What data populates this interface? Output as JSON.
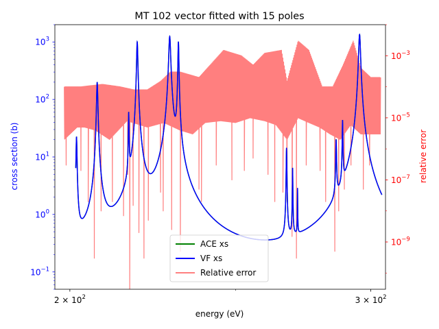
{
  "chart_data": {
    "type": "line",
    "title": "MT 102 vector fitted with 15 poles",
    "xlabel": "energy (eV)",
    "ylabel_left": "cross section (b)",
    "ylabel_right": "relative error",
    "x_scale": "log",
    "y_left_scale": "log",
    "y_right_scale": "log",
    "xlim": [
      196,
      306
    ],
    "ylim_left": [
      0.05,
      2000
    ],
    "ylim_right": [
      3e-11,
      0.01
    ],
    "x_ticks": [
      {
        "value": 200,
        "label": "2 × 10^2",
        "mant": "2 × 10",
        "exp": "2"
      },
      {
        "value": 300,
        "label": "3 × 10^2",
        "mant": "3 × 10",
        "exp": "2"
      }
    ],
    "y_left_ticks": [
      {
        "value": 1000,
        "label": "10^3",
        "exp": "3"
      },
      {
        "value": 100,
        "label": "10^2",
        "exp": "2"
      },
      {
        "value": 10,
        "label": "10^1",
        "exp": "1"
      },
      {
        "value": 1,
        "label": "10^0",
        "exp": "0"
      },
      {
        "value": 0.1,
        "label": "10^-1",
        "exp": "−1"
      }
    ],
    "y_right_ticks": [
      {
        "value": 0.001,
        "label": "10^-3",
        "exp": "−3"
      },
      {
        "value": 1e-05,
        "label": "10^-5",
        "exp": "−5"
      },
      {
        "value": 1e-07,
        "label": "10^-7",
        "exp": "−7"
      },
      {
        "value": 1e-09,
        "label": "10^-9",
        "exp": "−9"
      }
    ],
    "background_level": 0.08,
    "resonances": [
      {
        "E0": 201.8,
        "peak": 22,
        "gamma": 0.0006
      },
      {
        "E0": 207.5,
        "peak": 200,
        "gamma": 0.0008
      },
      {
        "E0": 216.5,
        "peak": 55,
        "gamma": 0.0004
      },
      {
        "E0": 219.0,
        "peak": 1000,
        "gamma": 0.0008
      },
      {
        "E0": 228.8,
        "peak": 1250,
        "gamma": 0.0012
      },
      {
        "E0": 231.5,
        "peak": 1000,
        "gamma": 0.0006
      },
      {
        "E0": 267.8,
        "peak": 14,
        "gamma": 0.0004
      },
      {
        "E0": 270.0,
        "peak": 6,
        "gamma": 0.0003
      },
      {
        "E0": 271.8,
        "peak": 2.4,
        "gamma": 0.0002
      },
      {
        "E0": 286.3,
        "peak": 18,
        "gamma": 0.0005
      },
      {
        "E0": 288.8,
        "peak": 40,
        "gamma": 0.0004
      },
      {
        "E0": 295.5,
        "peak": 1350,
        "gamma": 0.0012
      }
    ],
    "error_envelope": {
      "upper": [
        [
          198.5,
          0.0001
        ],
        [
          203,
          0.0001
        ],
        [
          209,
          0.00012
        ],
        [
          214,
          0.0001
        ],
        [
          218,
          8e-05
        ],
        [
          222,
          8e-05
        ],
        [
          226,
          0.00015
        ],
        [
          229,
          0.0003
        ],
        [
          232,
          0.0003
        ],
        [
          238,
          0.0002
        ],
        [
          246,
          0.0015
        ],
        [
          252,
          0.001
        ],
        [
          256,
          0.0005
        ],
        [
          260,
          0.0012
        ],
        [
          266,
          0.0015
        ],
        [
          268,
          0.00015
        ],
        [
          272,
          0.003
        ],
        [
          276,
          0.0015
        ],
        [
          281,
          0.0001
        ],
        [
          285,
          0.0001
        ],
        [
          289,
          0.0005
        ],
        [
          293,
          0.003
        ],
        [
          296,
          0.0004
        ],
        [
          300,
          0.0002
        ],
        [
          304,
          0.0002
        ]
      ],
      "lower": [
        [
          198.5,
          2e-06
        ],
        [
          202,
          5e-06
        ],
        [
          204,
          5e-06
        ],
        [
          207,
          4e-06
        ],
        [
          211,
          2e-06
        ],
        [
          216,
          8e-06
        ],
        [
          222,
          5e-06
        ],
        [
          227,
          7e-06
        ],
        [
          232,
          4e-06
        ],
        [
          236,
          3e-06
        ],
        [
          240,
          7e-06
        ],
        [
          245,
          8e-06
        ],
        [
          250,
          7e-06
        ],
        [
          255,
          1e-05
        ],
        [
          260,
          8e-06
        ],
        [
          264,
          6e-06
        ],
        [
          268,
          2e-06
        ],
        [
          272,
          1e-05
        ],
        [
          276,
          7e-06
        ],
        [
          280,
          5e-06
        ],
        [
          284,
          3e-06
        ],
        [
          288,
          2e-06
        ],
        [
          292,
          6e-06
        ],
        [
          296,
          3e-06
        ],
        [
          300,
          3e-06
        ],
        [
          304,
          3e-06
        ]
      ],
      "spikes": [
        [
          199.0,
          3e-07
        ],
        [
          203.0,
          2e-07
        ],
        [
          205.0,
          2e-08
        ],
        [
          206.7,
          3e-10
        ],
        [
          208.6,
          1e-08
        ],
        [
          211.8,
          2e-08
        ],
        [
          215.0,
          7e-09
        ],
        [
          216.2,
          1.5e-07
        ],
        [
          216.8,
          1.4e-11
        ],
        [
          217.8,
          1.5e-08
        ],
        [
          219.5,
          2e-09
        ],
        [
          221.0,
          3e-10
        ],
        [
          222.3,
          5e-09
        ],
        [
          226.0,
          4e-08
        ],
        [
          226.8,
          1e-08
        ],
        [
          229.4,
          2.5e-09
        ],
        [
          232.1,
          5e-10
        ],
        [
          238.0,
          5e-08
        ],
        [
          238.8,
          2e-08
        ],
        [
          243.6,
          3e-07
        ],
        [
          248.8,
          1e-07
        ],
        [
          253.0,
          2e-07
        ],
        [
          256.0,
          5e-07
        ],
        [
          261.2,
          1.5e-07
        ],
        [
          263.6,
          2e-08
        ],
        [
          266.5,
          4e-08
        ],
        [
          268.0,
          2e-08
        ],
        [
          269.8,
          1.5e-09
        ],
        [
          271.4,
          3e-10
        ],
        [
          275.0,
          3e-07
        ],
        [
          280.2,
          2e-07
        ],
        [
          282.3,
          2e-08
        ],
        [
          285.8,
          5e-10
        ],
        [
          287.3,
          1e-08
        ],
        [
          289.5,
          5e-08
        ],
        [
          292.1,
          3e-07
        ],
        [
          297.0,
          5e-08
        ],
        [
          299.5,
          3e-07
        ]
      ]
    },
    "series": [
      {
        "name": "ACE xs",
        "color": "#008000",
        "axis": "left"
      },
      {
        "name": "VF xs",
        "color": "#0000ff",
        "axis": "left"
      },
      {
        "name": "Relative error",
        "color": "#ff0000",
        "alpha": 0.5,
        "axis": "right"
      }
    ],
    "legend": {
      "placement": "lower center"
    },
    "colors": {
      "left_axis": "#0000ff",
      "right_axis": "#ff0000",
      "ace": "#008000",
      "vf": "#0000ff",
      "error_fill": "#ff7f7f"
    }
  }
}
